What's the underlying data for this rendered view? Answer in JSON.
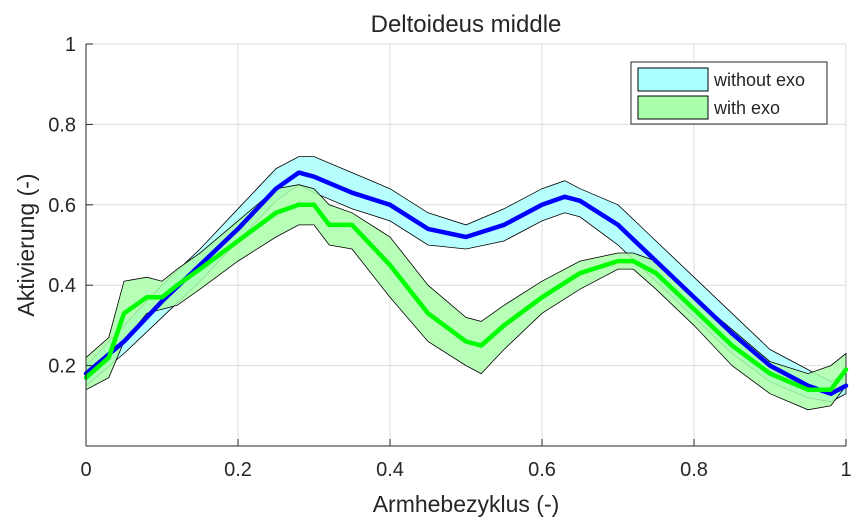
{
  "chart_data": {
    "type": "area",
    "title": "Deltoideus middle",
    "xlabel": "Armhebezyklus (-)",
    "ylabel": "Aktivierung (-)",
    "xlim": [
      0,
      1
    ],
    "ylim": [
      0,
      1
    ],
    "xticks": [
      0,
      0.2,
      0.4,
      0.6,
      0.8,
      1
    ],
    "xtick_labels": [
      "0",
      "0.2",
      "0.4",
      "0.6",
      "0.8",
      "1"
    ],
    "yticks": [
      0.2,
      0.4,
      0.6,
      0.8,
      1
    ],
    "ytick_labels": [
      "0.2",
      "0.4",
      "0.6",
      "0.8",
      "1"
    ],
    "grid": true,
    "legend_position": "top-right",
    "series": [
      {
        "name": "without exo",
        "line_color": "#0000ff",
        "band_color": "#aaffff",
        "x": [
          0,
          0.05,
          0.1,
          0.15,
          0.2,
          0.25,
          0.28,
          0.3,
          0.35,
          0.4,
          0.45,
          0.5,
          0.55,
          0.6,
          0.63,
          0.65,
          0.7,
          0.75,
          0.8,
          0.85,
          0.9,
          0.95,
          0.98,
          1
        ],
        "mean": [
          0.18,
          0.26,
          0.36,
          0.45,
          0.54,
          0.64,
          0.68,
          0.67,
          0.63,
          0.6,
          0.54,
          0.52,
          0.55,
          0.6,
          0.62,
          0.61,
          0.55,
          0.46,
          0.37,
          0.28,
          0.2,
          0.15,
          0.13,
          0.15
        ],
        "upper": [
          0.2,
          0.3,
          0.4,
          0.49,
          0.59,
          0.69,
          0.72,
          0.72,
          0.68,
          0.64,
          0.58,
          0.55,
          0.59,
          0.64,
          0.66,
          0.64,
          0.6,
          0.51,
          0.42,
          0.33,
          0.24,
          0.19,
          0.16,
          0.18
        ],
        "lower": [
          0.15,
          0.23,
          0.32,
          0.41,
          0.51,
          0.61,
          0.65,
          0.63,
          0.59,
          0.56,
          0.5,
          0.49,
          0.51,
          0.56,
          0.58,
          0.57,
          0.5,
          0.41,
          0.32,
          0.23,
          0.16,
          0.12,
          0.11,
          0.13
        ]
      },
      {
        "name": "with exo",
        "line_color": "#00ff00",
        "band_color": "#aaffaa",
        "x": [
          0,
          0.03,
          0.05,
          0.08,
          0.1,
          0.12,
          0.15,
          0.2,
          0.25,
          0.28,
          0.3,
          0.32,
          0.35,
          0.4,
          0.45,
          0.5,
          0.52,
          0.55,
          0.6,
          0.65,
          0.7,
          0.72,
          0.75,
          0.8,
          0.85,
          0.9,
          0.95,
          0.98,
          1
        ],
        "mean": [
          0.17,
          0.22,
          0.33,
          0.37,
          0.37,
          0.4,
          0.44,
          0.51,
          0.58,
          0.6,
          0.6,
          0.55,
          0.55,
          0.45,
          0.33,
          0.26,
          0.25,
          0.3,
          0.37,
          0.43,
          0.46,
          0.46,
          0.43,
          0.34,
          0.25,
          0.18,
          0.14,
          0.14,
          0.19
        ],
        "upper": [
          0.22,
          0.27,
          0.41,
          0.42,
          0.41,
          0.44,
          0.48,
          0.56,
          0.64,
          0.65,
          0.64,
          0.6,
          0.58,
          0.52,
          0.4,
          0.32,
          0.31,
          0.35,
          0.41,
          0.46,
          0.48,
          0.48,
          0.46,
          0.37,
          0.29,
          0.21,
          0.18,
          0.2,
          0.23
        ],
        "lower": [
          0.14,
          0.17,
          0.26,
          0.33,
          0.34,
          0.35,
          0.39,
          0.46,
          0.52,
          0.55,
          0.55,
          0.5,
          0.49,
          0.37,
          0.26,
          0.2,
          0.18,
          0.24,
          0.33,
          0.39,
          0.44,
          0.44,
          0.39,
          0.3,
          0.2,
          0.13,
          0.09,
          0.1,
          0.15
        ]
      }
    ]
  }
}
